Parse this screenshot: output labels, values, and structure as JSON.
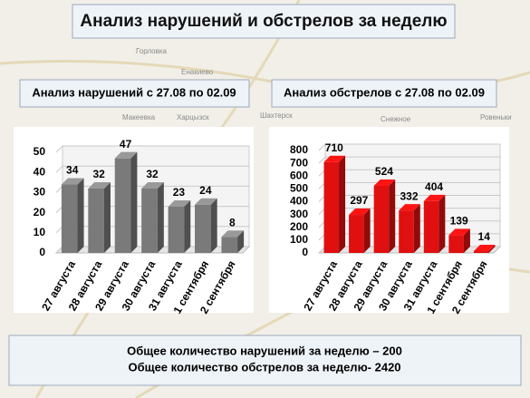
{
  "header": {
    "title": "Анализ нарушений и обстрелов за неделю"
  },
  "map_labels": [
    "Горловка",
    "Енакиево",
    "Макеевка",
    "Харцызск",
    "Шахтерск",
    "Снежное",
    "Ровеньки"
  ],
  "chart_data": [
    {
      "type": "bar",
      "title": "Анализ нарушений с 27.08 по 02.09",
      "categories": [
        "27 августа",
        "28 августа",
        "29 августа",
        "30 августа",
        "31 августа",
        "1 сентября",
        "2 сентября"
      ],
      "values": [
        34,
        32,
        47,
        32,
        23,
        24,
        8
      ],
      "color": "#7a7a7a",
      "ylim": [
        0,
        50
      ],
      "yticks": [
        0,
        10,
        20,
        30,
        40,
        50
      ],
      "grid": true
    },
    {
      "type": "bar",
      "title": "Анализ обстрелов с 27.08 по 02.09",
      "categories": [
        "27 августа",
        "28 августа",
        "29 августа",
        "30 августа",
        "31 августа",
        "1 сентября",
        "2 сентября"
      ],
      "values": [
        710,
        297,
        524,
        332,
        404,
        139,
        14
      ],
      "color": "#e01010",
      "ylim": [
        0,
        800
      ],
      "yticks": [
        0,
        100,
        200,
        300,
        400,
        500,
        600,
        700,
        800
      ],
      "grid": true
    }
  ],
  "footer": {
    "lines": [
      "Общее количество нарушений за неделю – 200",
      "Общее количество обстрелов за неделю- 2420"
    ]
  }
}
